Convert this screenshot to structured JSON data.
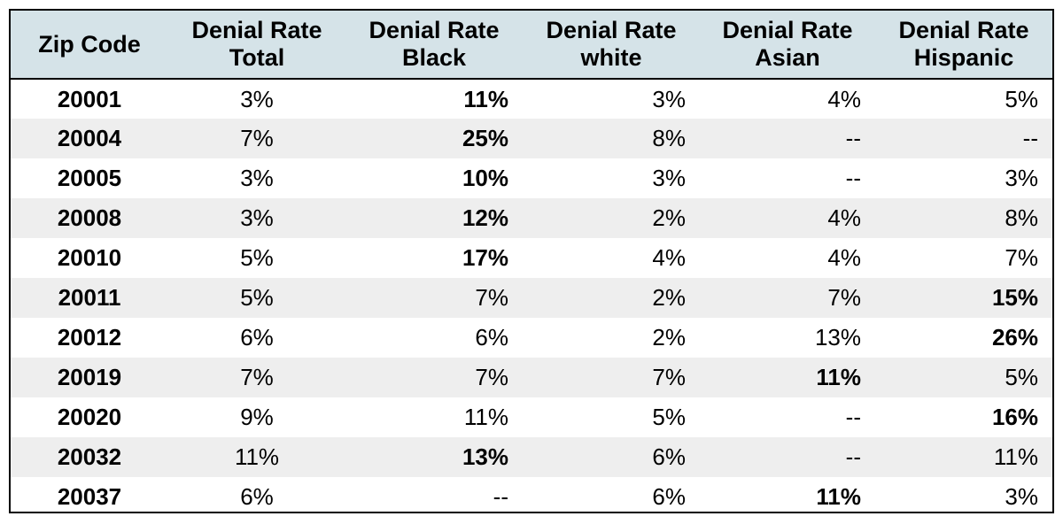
{
  "headers": [
    [
      "Zip Code"
    ],
    [
      "Denial Rate",
      "Total"
    ],
    [
      "Denial Rate",
      "Black"
    ],
    [
      "Denial Rate",
      "white"
    ],
    [
      "Denial Rate",
      "Asian"
    ],
    [
      "Denial Rate",
      "Hispanic"
    ]
  ],
  "rows": [
    {
      "zip": "20001",
      "total": "3%",
      "black": "11%",
      "white": "3%",
      "asian": "4%",
      "hispanic": "5%",
      "bold": [
        "black"
      ]
    },
    {
      "zip": "20004",
      "total": "7%",
      "black": "25%",
      "white": "8%",
      "asian": "--",
      "hispanic": "--",
      "bold": [
        "black"
      ]
    },
    {
      "zip": "20005",
      "total": "3%",
      "black": "10%",
      "white": "3%",
      "asian": "--",
      "hispanic": "3%",
      "bold": [
        "black"
      ]
    },
    {
      "zip": "20008",
      "total": "3%",
      "black": "12%",
      "white": "2%",
      "asian": "4%",
      "hispanic": "8%",
      "bold": [
        "black"
      ]
    },
    {
      "zip": "20010",
      "total": "5%",
      "black": "17%",
      "white": "4%",
      "asian": "4%",
      "hispanic": "7%",
      "bold": [
        "black"
      ]
    },
    {
      "zip": "20011",
      "total": "5%",
      "black": "7%",
      "white": "2%",
      "asian": "7%",
      "hispanic": "15%",
      "bold": [
        "hispanic"
      ]
    },
    {
      "zip": "20012",
      "total": "6%",
      "black": "6%",
      "white": "2%",
      "asian": "13%",
      "hispanic": "26%",
      "bold": [
        "hispanic"
      ]
    },
    {
      "zip": "20019",
      "total": "7%",
      "black": "7%",
      "white": "7%",
      "asian": "11%",
      "hispanic": "5%",
      "bold": [
        "asian"
      ]
    },
    {
      "zip": "20020",
      "total": "9%",
      "black": "11%",
      "white": "5%",
      "asian": "--",
      "hispanic": "16%",
      "bold": [
        "hispanic"
      ]
    },
    {
      "zip": "20032",
      "total": "11%",
      "black": "13%",
      "white": "6%",
      "asian": "--",
      "hispanic": "11%",
      "bold": [
        "black"
      ]
    },
    {
      "zip": "20037",
      "total": "6%",
      "black": "--",
      "white": "6%",
      "asian": "11%",
      "hispanic": "3%",
      "bold": [
        "asian"
      ]
    }
  ]
}
